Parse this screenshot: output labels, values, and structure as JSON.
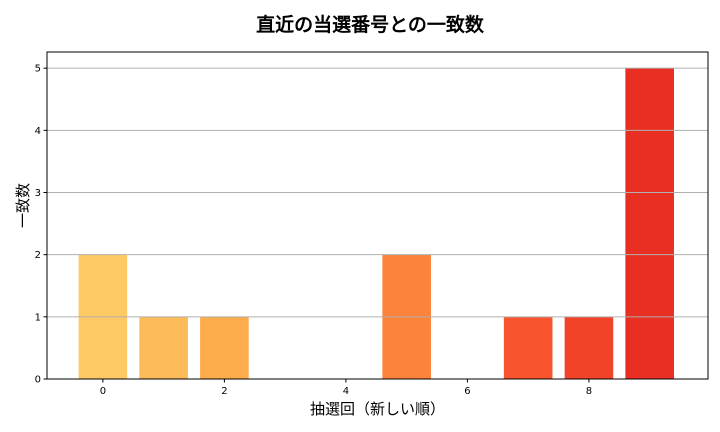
{
  "chart_data": {
    "type": "bar",
    "title": "直近の当選番号との一致数",
    "xlabel": "抽選回（新しい順）",
    "ylabel": "一致数",
    "x": [
      0,
      1,
      2,
      3,
      4,
      5,
      6,
      7,
      8,
      9
    ],
    "values": [
      2,
      1,
      1,
      0,
      0,
      2,
      0,
      1,
      1,
      5
    ],
    "colors": [
      "#FEC965",
      "#FDBA58",
      "#FDAC4C",
      "#FD9C45",
      "#FC8F40",
      "#FC833A",
      "#FA6C34",
      "#F8552F",
      "#F14329",
      "#E92E23"
    ],
    "xticks": [
      0,
      2,
      4,
      6,
      8
    ],
    "yticks": [
      0,
      1,
      2,
      3,
      4,
      5
    ],
    "xlim": [
      -0.92,
      9.96
    ],
    "ylim": [
      0,
      5.26
    ],
    "bar_width": 0.8,
    "grid": "y",
    "legend": null
  }
}
